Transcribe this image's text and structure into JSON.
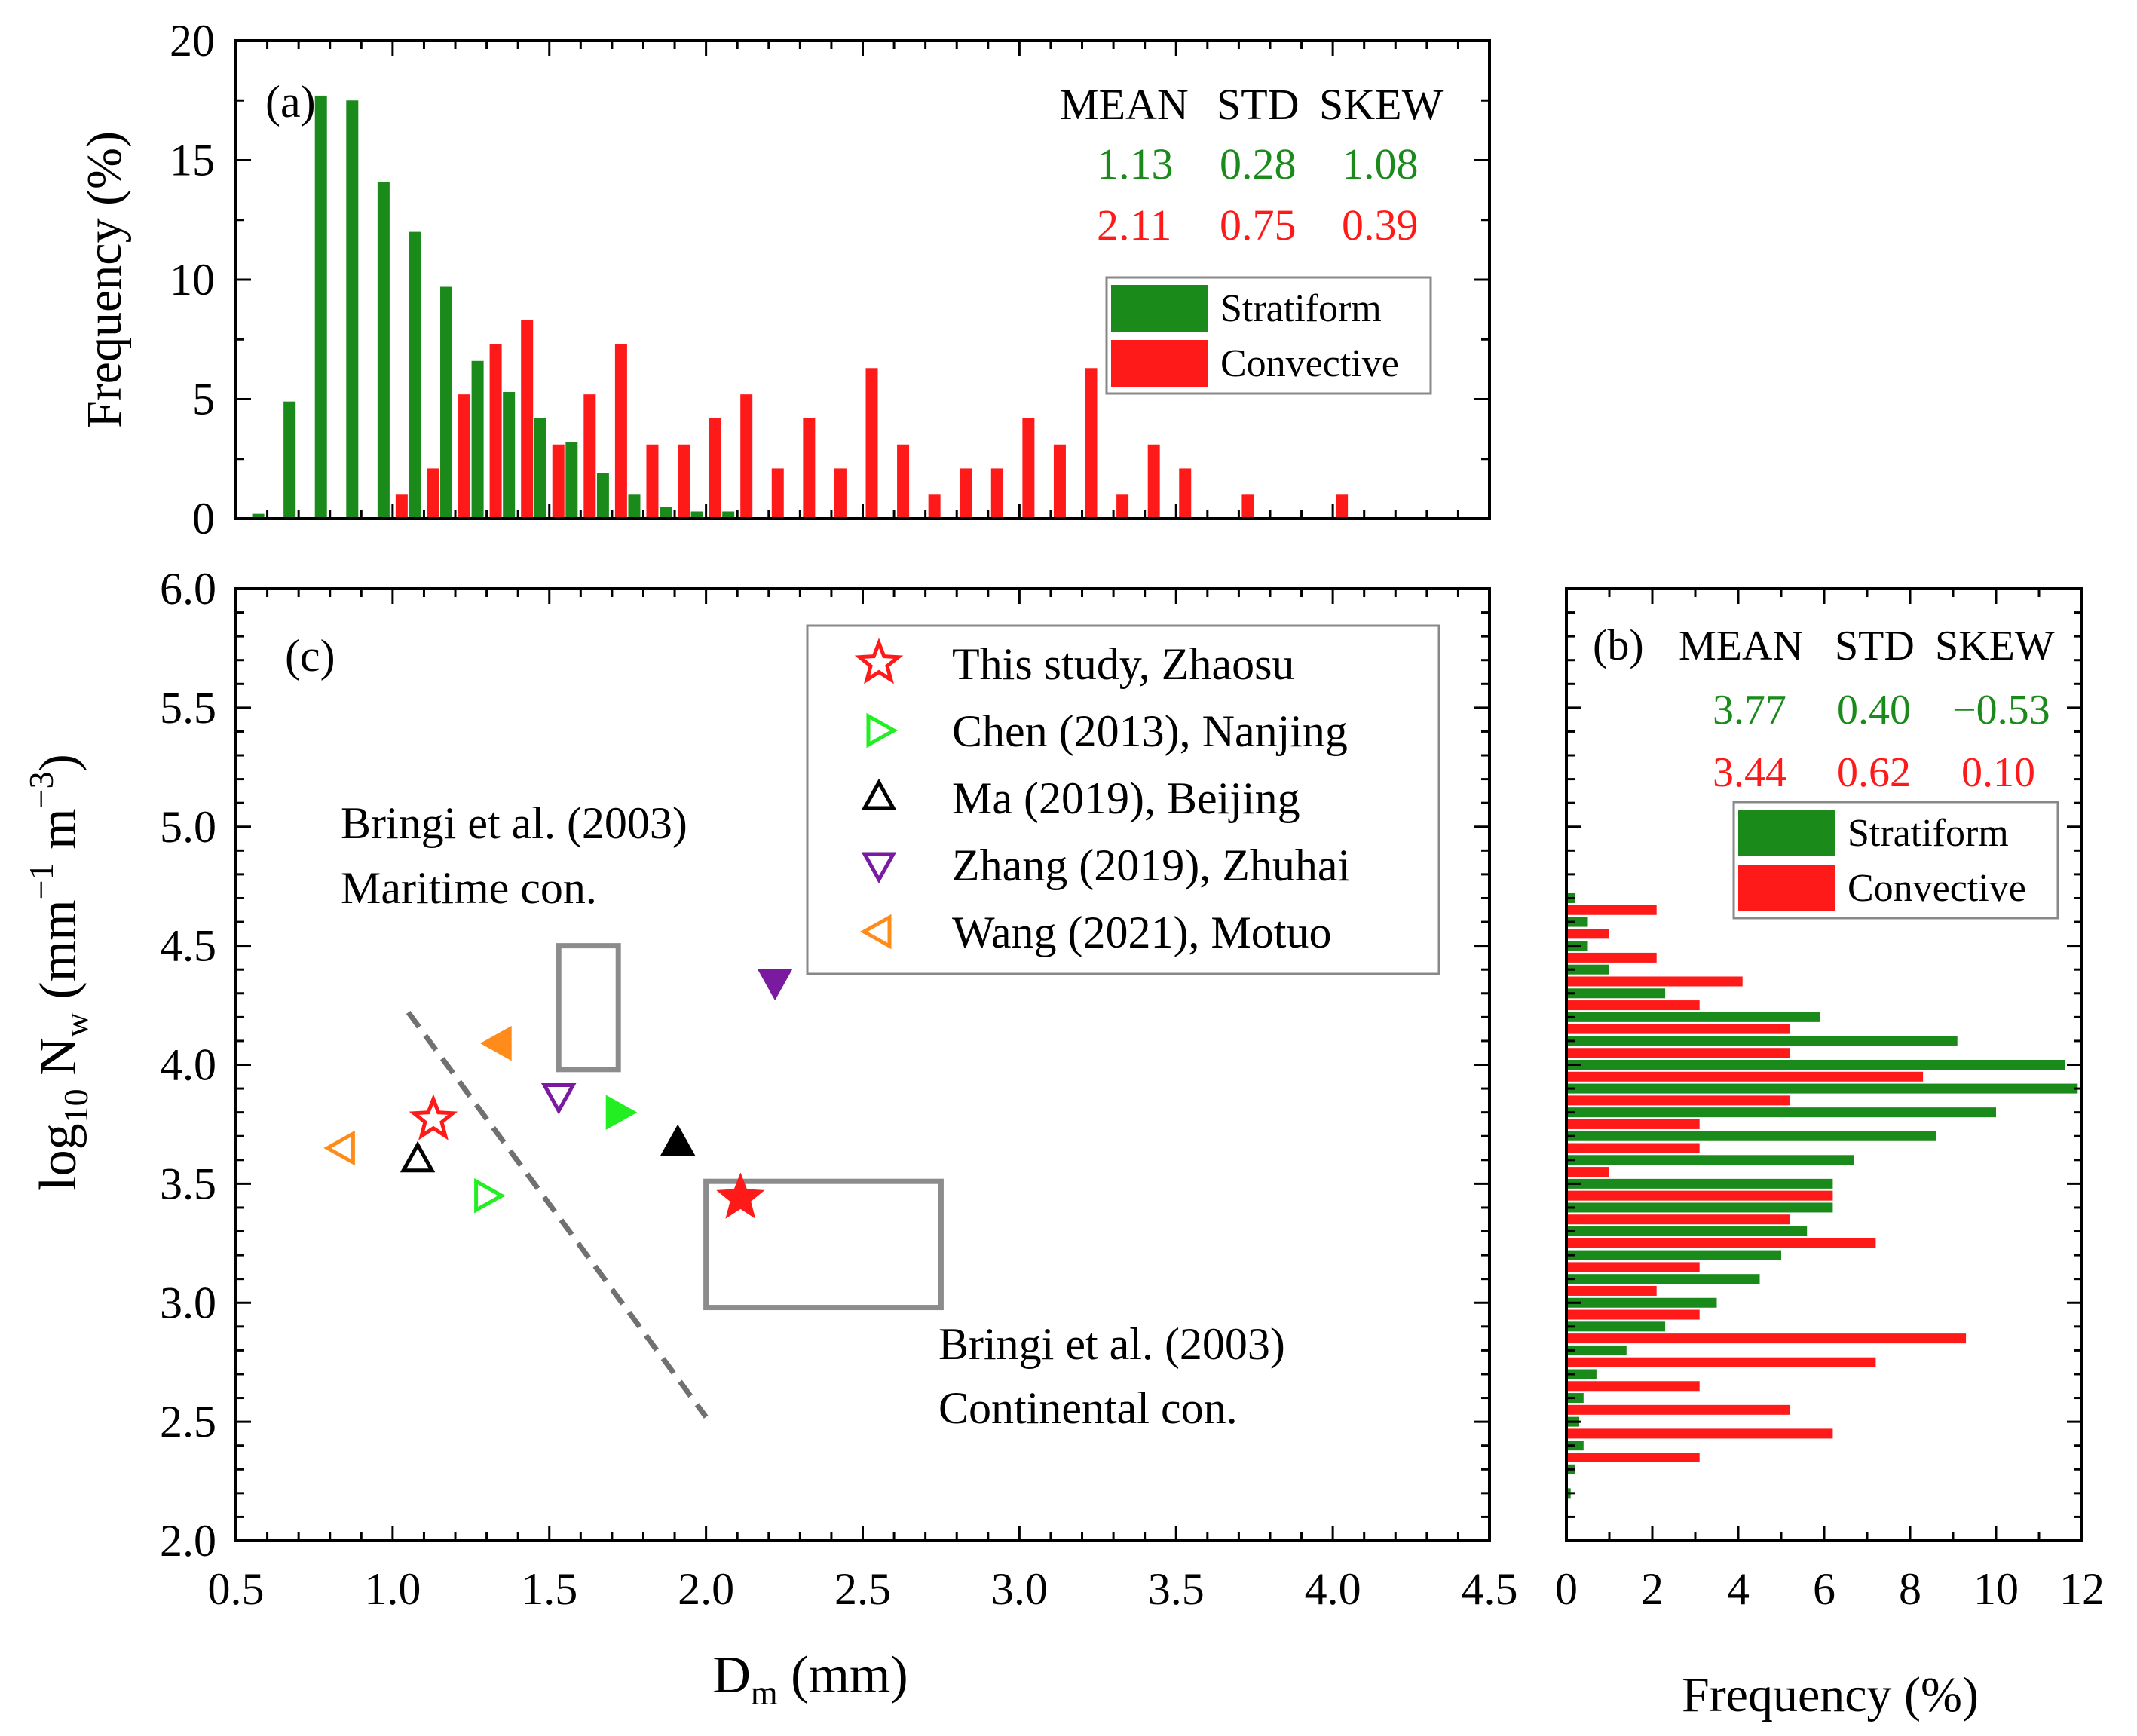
{
  "colors": {
    "stratiform": "#1a8a1a",
    "convective": "#ff1a1a",
    "axis": "#000000",
    "box": "#8c8c8c",
    "dash": "#707070",
    "chen": "#22ee22",
    "ma": "#000000",
    "zhang": "#7a1aa0",
    "wang": "#ff8c1a",
    "this_study": "#ff1a1a"
  },
  "chart_data": [
    {
      "id": "a",
      "type": "bar",
      "panel_label": "(a)",
      "ylabel": "Frequency (%)",
      "xlim": [
        0.5,
        4.5
      ],
      "ylim": [
        0,
        20
      ],
      "yticks": [
        0,
        5,
        10,
        15,
        20
      ],
      "stats": {
        "headers": [
          "MEAN",
          "STD",
          "SKEW"
        ],
        "stratiform": [
          "1.13",
          "0.28",
          "1.08"
        ],
        "convective": [
          "2.11",
          "0.75",
          "0.39"
        ]
      },
      "legend": [
        "Stratiform",
        "Convective"
      ],
      "series": [
        {
          "name": "Stratiform",
          "x": [
            0.6,
            0.7,
            0.8,
            0.9,
            1.0,
            1.1,
            1.2,
            1.3,
            1.4,
            1.5,
            1.6,
            1.7,
            1.8,
            1.9,
            2.0,
            2.1
          ],
          "values": [
            0.2,
            4.9,
            17.7,
            17.5,
            14.1,
            12.0,
            9.7,
            6.6,
            5.3,
            4.2,
            3.2,
            1.9,
            1.0,
            0.5,
            0.3,
            0.3
          ]
        },
        {
          "name": "Convective",
          "x": [
            1.0,
            1.1,
            1.2,
            1.3,
            1.4,
            1.5,
            1.6,
            1.7,
            1.8,
            1.9,
            2.0,
            2.1,
            2.2,
            2.3,
            2.4,
            2.5,
            2.6,
            2.7,
            2.8,
            2.9,
            3.0,
            3.1,
            3.2,
            3.3,
            3.4,
            3.5,
            3.7,
            4.0
          ],
          "values": [
            1.0,
            2.1,
            5.2,
            7.3,
            8.3,
            3.1,
            5.2,
            7.3,
            3.1,
            3.1,
            4.2,
            5.2,
            2.1,
            4.2,
            2.1,
            6.3,
            3.1,
            1.0,
            2.1,
            2.1,
            4.2,
            3.1,
            6.3,
            1.0,
            3.1,
            2.1,
            1.0,
            1.0
          ]
        }
      ]
    },
    {
      "id": "c",
      "type": "scatter",
      "panel_label": "(c)",
      "xlabel": "D",
      "xlabel_sub": "m",
      "xlabel_unit": " (mm)",
      "ylabel_parts": [
        "log",
        "10",
        " N",
        "w",
        " (mm",
        "−1",
        " m",
        "−3",
        ")"
      ],
      "xlim": [
        0.5,
        4.5
      ],
      "ylim": [
        2.0,
        6.0
      ],
      "xticks": [
        "0.5",
        "1.0",
        "1.5",
        "2.0",
        "2.5",
        "3.0",
        "3.5",
        "4.0",
        "4.5"
      ],
      "yticks": [
        "2.0",
        "2.5",
        "3.0",
        "3.5",
        "4.0",
        "4.5",
        "5.0",
        "5.5",
        "6.0"
      ],
      "legend": [
        {
          "label": "This study, Zhaosu",
          "marker": "star",
          "color_key": "this_study"
        },
        {
          "label": "Chen (2013), Nanjing",
          "marker": "tri-right",
          "color_key": "chen"
        },
        {
          "label": "Ma (2019), Beijing",
          "marker": "tri-up",
          "color_key": "ma"
        },
        {
          "label": "Zhang (2019), Zhuhai",
          "marker": "tri-down",
          "color_key": "zhang"
        },
        {
          "label": "Wang (2021), Motuo",
          "marker": "tri-left",
          "color_key": "wang"
        }
      ],
      "points": [
        {
          "source": "This study, Zhaosu",
          "type": "stratiform",
          "marker": "star",
          "filled": false,
          "color_key": "this_study",
          "x": 1.13,
          "y": 3.77
        },
        {
          "source": "This study, Zhaosu",
          "type": "convective",
          "marker": "star",
          "filled": true,
          "color_key": "this_study",
          "x": 2.11,
          "y": 3.44
        },
        {
          "source": "Chen (2013), Nanjing",
          "type": "stratiform",
          "marker": "tri-right",
          "filled": false,
          "color_key": "chen",
          "x": 1.3,
          "y": 3.45
        },
        {
          "source": "Chen (2013), Nanjing",
          "type": "convective",
          "marker": "tri-right",
          "filled": true,
          "color_key": "chen",
          "x": 1.72,
          "y": 3.8
        },
        {
          "source": "Ma (2019), Beijing",
          "type": "stratiform",
          "marker": "tri-up",
          "filled": false,
          "color_key": "ma",
          "x": 1.08,
          "y": 3.6
        },
        {
          "source": "Ma (2019), Beijing",
          "type": "convective",
          "marker": "tri-up",
          "filled": true,
          "color_key": "ma",
          "x": 1.91,
          "y": 3.67
        },
        {
          "source": "Zhang (2019), Zhuhai",
          "type": "stratiform",
          "marker": "tri-down",
          "filled": false,
          "color_key": "zhang",
          "x": 1.53,
          "y": 3.87
        },
        {
          "source": "Zhang (2019), Zhuhai",
          "type": "convective",
          "marker": "tri-down",
          "filled": true,
          "color_key": "zhang",
          "x": 2.22,
          "y": 4.35
        },
        {
          "source": "Wang (2021), Motuo",
          "type": "stratiform",
          "marker": "tri-left",
          "filled": false,
          "color_key": "wang",
          "x": 0.84,
          "y": 3.65
        },
        {
          "source": "Wang (2021), Motuo",
          "type": "convective",
          "marker": "tri-left",
          "filled": true,
          "color_key": "wang",
          "x": 1.34,
          "y": 4.09
        }
      ],
      "boxes": [
        {
          "name": "maritime",
          "x": [
            1.53,
            1.72
          ],
          "y": [
            3.98,
            4.5
          ]
        },
        {
          "name": "continental",
          "x": [
            2.0,
            2.75
          ],
          "y": [
            2.98,
            3.51
          ]
        }
      ],
      "dashed_line": {
        "x": [
          1.05,
          2.0
        ],
        "y": [
          4.22,
          2.52
        ]
      },
      "annotations": {
        "maritime_line1": "Bringi et al. (2003)",
        "maritime_line2": "Maritime con.",
        "continental_line1": "Bringi et al. (2003)",
        "continental_line2": "Continental con."
      }
    },
    {
      "id": "b",
      "type": "bar",
      "orientation": "horizontal",
      "panel_label": "(b)",
      "xlabel": "Frequency (%)",
      "xlim": [
        0,
        12
      ],
      "ylim": [
        2.0,
        6.0
      ],
      "xticks": [
        "0",
        "2",
        "4",
        "6",
        "8",
        "10",
        "12"
      ],
      "stats": {
        "headers": [
          "MEAN",
          "STD",
          "SKEW"
        ],
        "stratiform": [
          "3.77",
          "0.40",
          "−0.53"
        ],
        "convective": [
          "3.44",
          "0.62",
          "0.10"
        ]
      },
      "legend": [
        "Stratiform",
        "Convective"
      ],
      "series": [
        {
          "name": "Stratiform",
          "y": [
            2.2,
            2.3,
            2.4,
            2.5,
            2.6,
            2.7,
            2.8,
            2.9,
            3.0,
            3.1,
            3.2,
            3.3,
            3.4,
            3.5,
            3.6,
            3.7,
            3.8,
            3.9,
            4.0,
            4.1,
            4.2,
            4.3,
            4.4,
            4.5,
            4.6,
            4.7
          ],
          "values": [
            0.1,
            0.2,
            0.4,
            0.3,
            0.4,
            0.7,
            1.4,
            2.3,
            3.5,
            4.5,
            5.0,
            5.6,
            6.2,
            6.2,
            6.7,
            8.6,
            10.0,
            11.9,
            11.6,
            9.1,
            5.9,
            2.3,
            1.0,
            0.5,
            0.5,
            0.2
          ]
        },
        {
          "name": "Convective",
          "y": [
            2.35,
            2.45,
            2.55,
            2.65,
            2.75,
            2.85,
            2.95,
            3.05,
            3.15,
            3.25,
            3.35,
            3.45,
            3.55,
            3.65,
            3.75,
            3.85,
            3.95,
            4.05,
            4.15,
            4.25,
            4.35,
            4.45,
            4.55,
            4.65
          ],
          "values": [
            3.1,
            6.2,
            5.2,
            3.1,
            7.2,
            9.3,
            3.1,
            2.1,
            3.1,
            7.2,
            5.2,
            6.2,
            1.0,
            3.1,
            3.1,
            5.2,
            8.3,
            5.2,
            5.2,
            3.1,
            4.1,
            2.1,
            1.0,
            2.1
          ]
        }
      ]
    }
  ]
}
